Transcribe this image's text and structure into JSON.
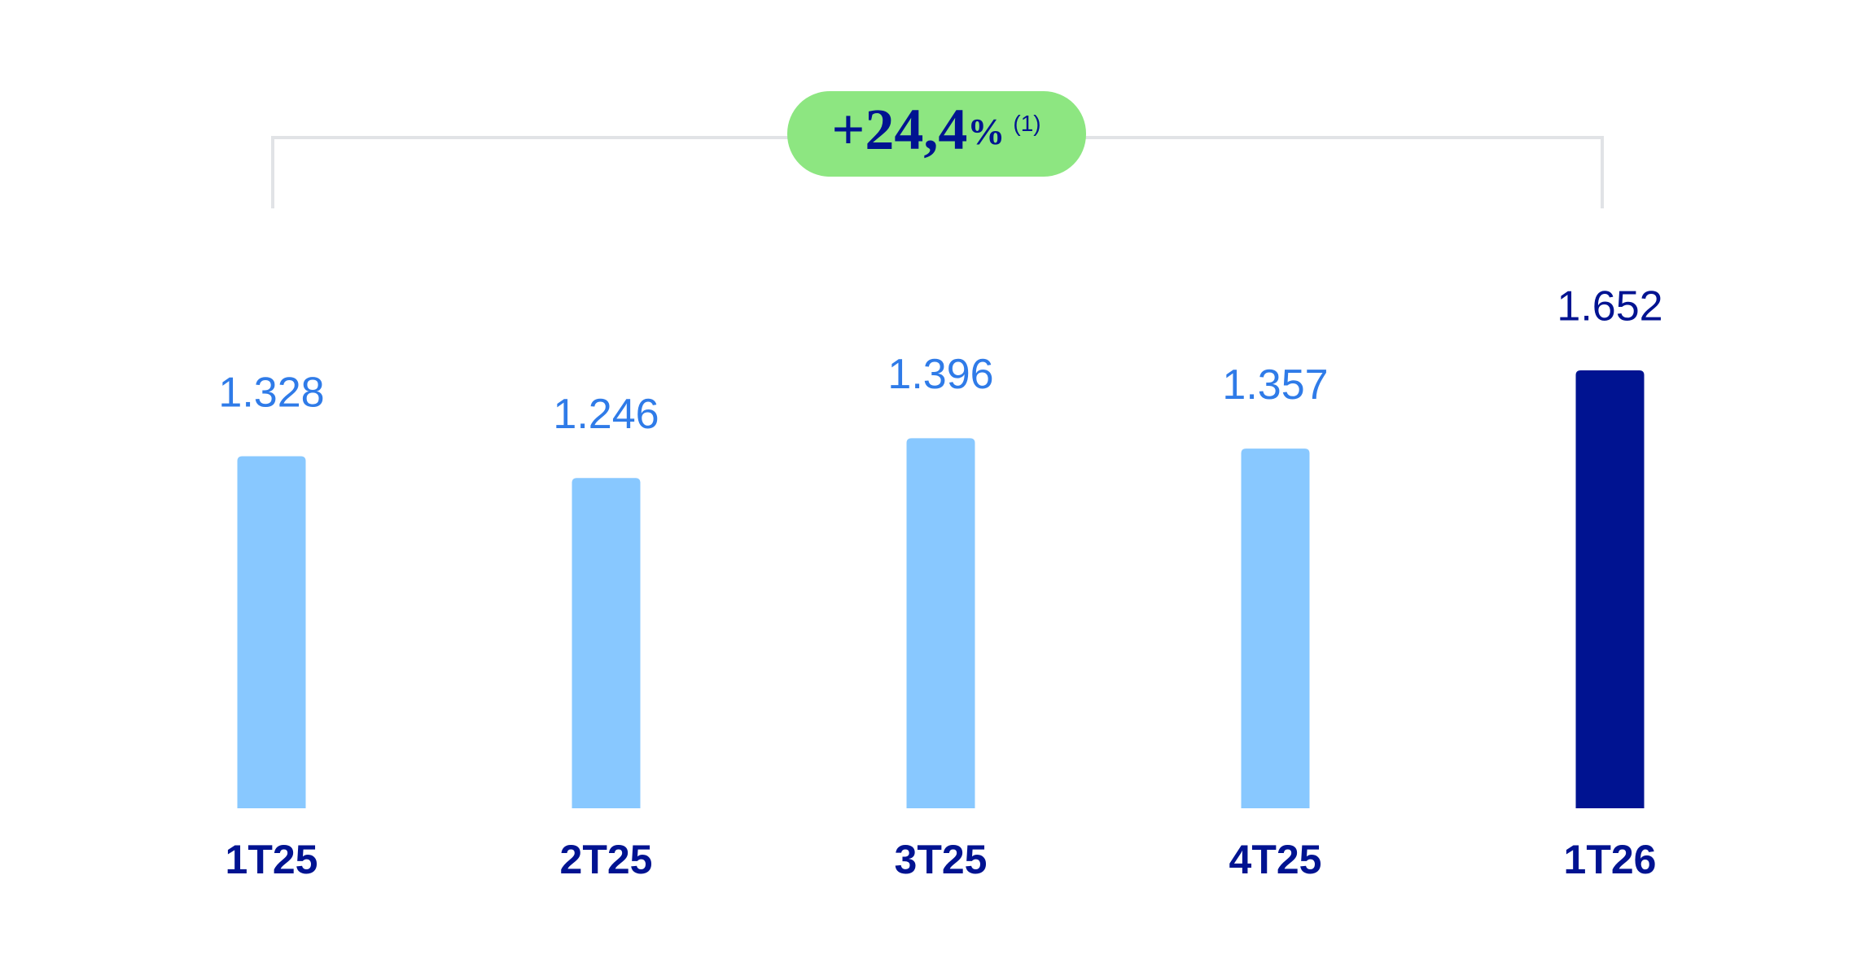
{
  "chart_data": {
    "type": "bar",
    "categories": [
      "1T25",
      "2T25",
      "3T25",
      "4T25",
      "1T26"
    ],
    "values": [
      1328,
      1246,
      1396,
      1357,
      1652
    ],
    "value_labels": [
      "1.328",
      "1.246",
      "1.396",
      "1.357",
      "1.652"
    ],
    "colors": [
      "#88c8ff",
      "#88c8ff",
      "#88c8ff",
      "#88c8ff",
      "#001391"
    ],
    "label_colors": [
      "#2f7be8",
      "#2f7be8",
      "#2f7be8",
      "#2f7be8",
      "#001391"
    ],
    "annotation": {
      "value": "+24,4",
      "unit": "%",
      "note": "(1)",
      "color": "#8de681"
    }
  }
}
